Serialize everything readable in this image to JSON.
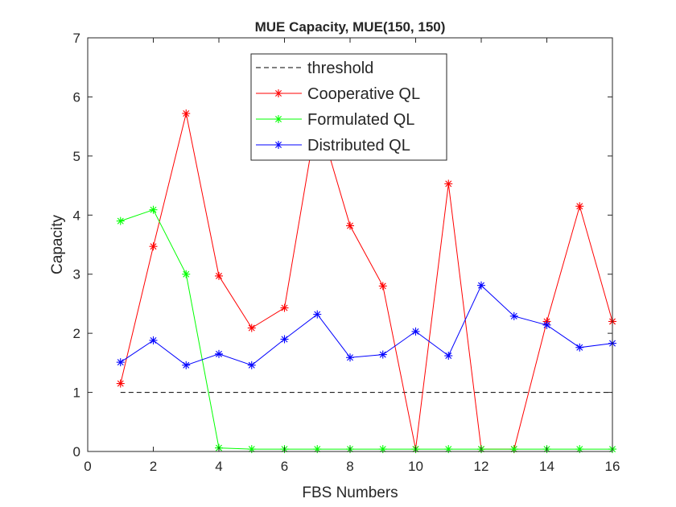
{
  "chart_data": {
    "type": "line",
    "title": "MUE Capacity, MUE(150, 150)",
    "xlabel": "FBS Numbers",
    "ylabel": "Capacity",
    "xlim": [
      0,
      16
    ],
    "ylim": [
      0,
      7
    ],
    "xticks": [
      0,
      2,
      4,
      6,
      8,
      10,
      12,
      14,
      16
    ],
    "yticks": [
      0,
      1,
      2,
      3,
      4,
      5,
      6,
      7
    ],
    "grid": false,
    "legend_position": "top-center",
    "x": [
      1,
      2,
      3,
      4,
      5,
      6,
      7,
      8,
      9,
      10,
      11,
      12,
      13,
      14,
      15,
      16
    ],
    "series": [
      {
        "name": "threshold",
        "color": "#000000",
        "dashed": true,
        "marker": "none",
        "x": [
          1,
          16
        ],
        "values": [
          1,
          1
        ]
      },
      {
        "name": "Cooperative QL",
        "color": "#ff0000",
        "dashed": false,
        "marker": "asterisk",
        "values": [
          1.15,
          3.47,
          5.72,
          2.97,
          2.09,
          2.43,
          5.7,
          3.82,
          2.8,
          0.04,
          4.53,
          0.04,
          0.04,
          2.2,
          4.15,
          2.2
        ]
      },
      {
        "name": "Formulated QL",
        "color": "#00ff00",
        "dashed": false,
        "marker": "asterisk",
        "values": [
          3.9,
          4.09,
          3.0,
          0.06,
          0.04,
          0.04,
          0.04,
          0.04,
          0.04,
          0.04,
          0.04,
          0.04,
          0.04,
          0.04,
          0.04,
          0.04
        ]
      },
      {
        "name": "Distributed QL",
        "color": "#0000ff",
        "dashed": false,
        "marker": "asterisk",
        "values": [
          1.51,
          1.88,
          1.46,
          1.65,
          1.46,
          1.9,
          2.32,
          1.59,
          1.64,
          2.03,
          1.62,
          2.81,
          2.29,
          2.14,
          1.76,
          1.83
        ]
      }
    ]
  }
}
